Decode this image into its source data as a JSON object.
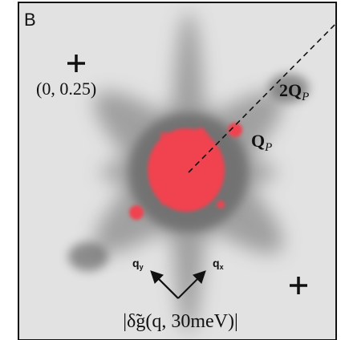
{
  "panel_label": "B",
  "point_label": "(0, 0.25)",
  "peak_labels": [
    {
      "main": "2Q",
      "sub": "P"
    },
    {
      "main": "Q",
      "sub": "P"
    }
  ],
  "axis_labels": [
    {
      "main": "q",
      "sub": "y"
    },
    {
      "main": "q",
      "sub": "x"
    }
  ],
  "caption": "|δ̃g(q, 30meV)|"
}
